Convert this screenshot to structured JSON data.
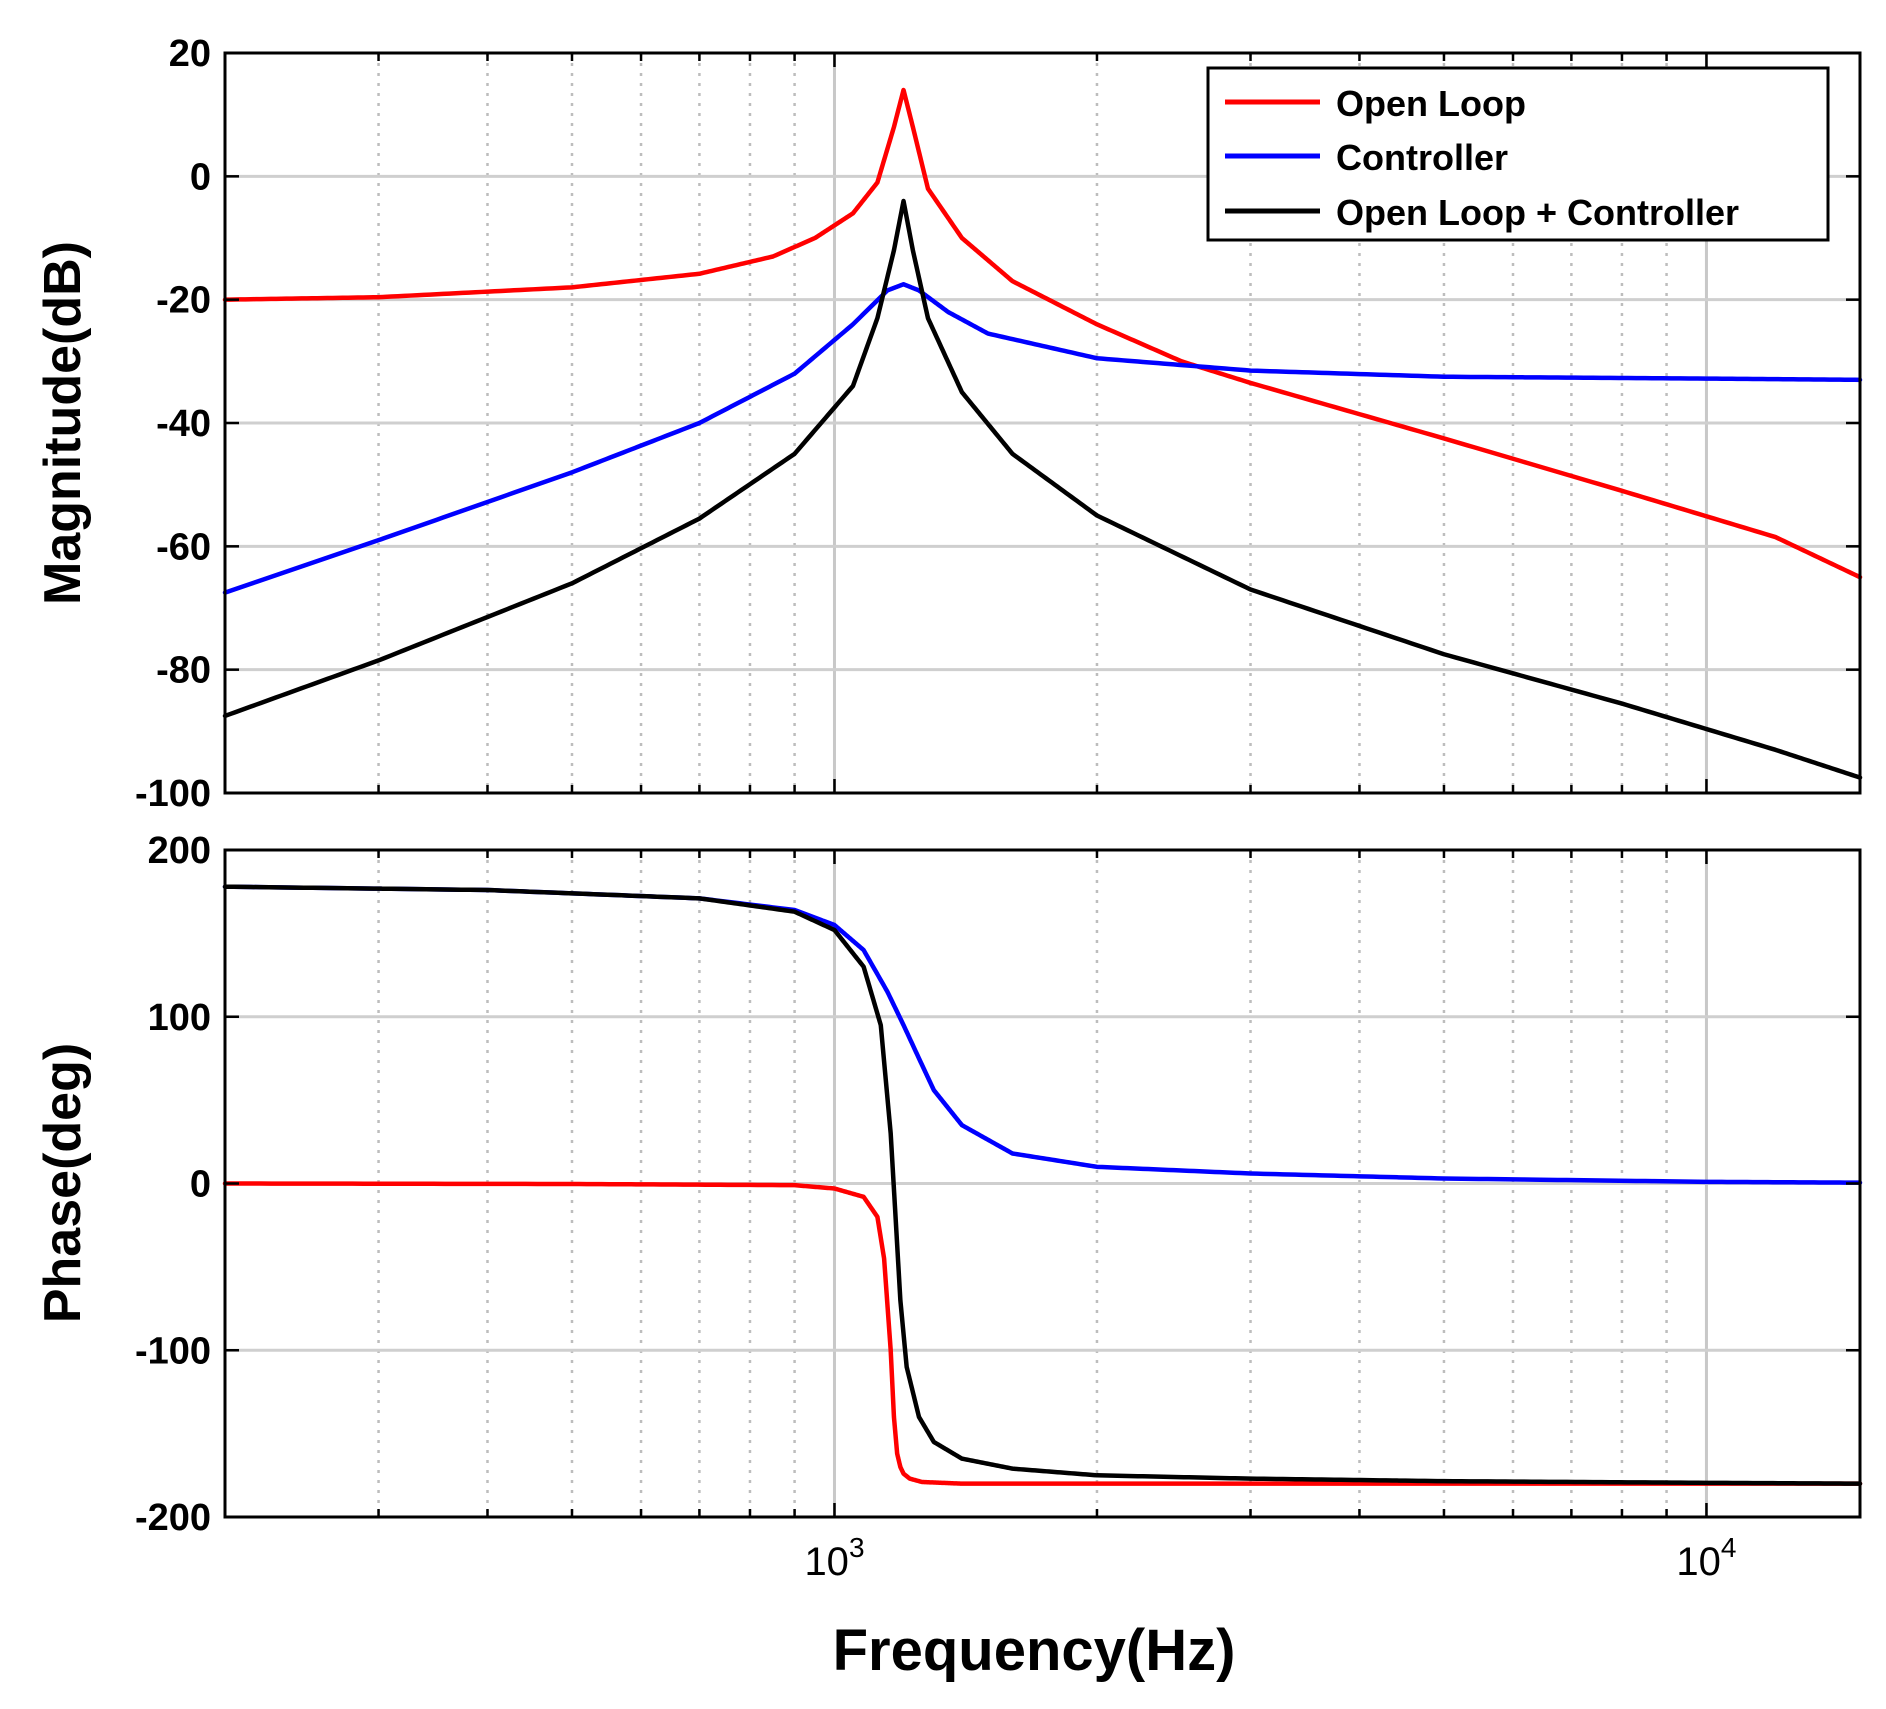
{
  "chart_data": [
    {
      "type": "line",
      "id": "magnitude",
      "title": "",
      "xlabel": "",
      "ylabel": "Magnitude(dB)",
      "xscale": "log",
      "xlim": [
        200,
        15000
      ],
      "ylim": [
        -100,
        20
      ],
      "yticks": [
        20,
        0,
        -20,
        -40,
        -60,
        -80,
        -100
      ],
      "yticklabels": [
        "20",
        "0",
        "-20",
        "-40",
        "-60",
        "-80",
        "-100"
      ],
      "grid": true,
      "legend_position": "top-right",
      "series": [
        {
          "name": "Open Loop",
          "color": "#ff0000",
          "x": [
            200,
            300,
            500,
            700,
            850,
            950,
            1050,
            1120,
            1170,
            1200,
            1230,
            1280,
            1400,
            1600,
            2000,
            2500,
            3000,
            5000,
            8000,
            12000,
            15000
          ],
          "y": [
            -20,
            -19.6,
            -18,
            -15.8,
            -13,
            -10,
            -6,
            -1,
            8,
            14,
            8,
            -2,
            -10,
            -17,
            -24,
            -30,
            -33.5,
            -42.5,
            -51,
            -58.5,
            -65
          ]
        },
        {
          "name": "Controller",
          "color": "#0000ff",
          "x": [
            200,
            300,
            500,
            700,
            900,
            1050,
            1150,
            1200,
            1250,
            1350,
            1500,
            2000,
            3000,
            5000,
            10000,
            15000
          ],
          "y": [
            -67.5,
            -59,
            -48,
            -40,
            -32,
            -24,
            -18.5,
            -17.5,
            -18.5,
            -22,
            -25.5,
            -29.5,
            -31.5,
            -32.5,
            -32.8,
            -33
          ]
        },
        {
          "name": "Open Loop + Controller",
          "color": "#000000",
          "x": [
            200,
            300,
            500,
            700,
            900,
            1050,
            1120,
            1170,
            1200,
            1230,
            1280,
            1400,
            1600,
            2000,
            3000,
            5000,
            8000,
            12000,
            15000
          ],
          "y": [
            -87.5,
            -78.5,
            -66,
            -55.5,
            -45,
            -34,
            -23,
            -12,
            -4,
            -12,
            -23,
            -35,
            -45,
            -55,
            -67,
            -77.5,
            -85.5,
            -93,
            -97.5
          ]
        }
      ]
    },
    {
      "type": "line",
      "id": "phase",
      "title": "",
      "xlabel": "Frequency(Hz)",
      "ylabel": "Phase(deg)",
      "xscale": "log",
      "xlim": [
        200,
        15000
      ],
      "ylim": [
        -200,
        200
      ],
      "yticks": [
        200,
        100,
        0,
        -100,
        -200
      ],
      "yticklabels": [
        "200",
        "100",
        "0",
        "-100",
        "-200"
      ],
      "xticks": [
        1000,
        10000
      ],
      "xtick_bases": [
        "10",
        "10"
      ],
      "xtick_exps": [
        "3",
        "4"
      ],
      "grid": true,
      "series": [
        {
          "name": "Open Loop",
          "color": "#ff0000",
          "x": [
            200,
            500,
            900,
            1000,
            1080,
            1120,
            1140,
            1160,
            1170,
            1180,
            1190,
            1200,
            1220,
            1260,
            1400,
            2000,
            5000,
            15000
          ],
          "y": [
            0,
            -0.3,
            -1,
            -3,
            -8,
            -20,
            -45,
            -100,
            -140,
            -162,
            -170,
            -174,
            -177,
            -179,
            -180,
            -180,
            -180,
            -180
          ]
        },
        {
          "name": "Controller",
          "color": "#0000ff",
          "x": [
            200,
            400,
            700,
            900,
            1000,
            1080,
            1150,
            1200,
            1250,
            1300,
            1400,
            1600,
            2000,
            3000,
            5000,
            10000,
            15000
          ],
          "y": [
            178,
            176,
            171,
            164,
            155,
            140,
            115,
            95,
            75,
            56,
            35,
            18,
            10,
            6,
            3,
            1,
            0.5
          ]
        },
        {
          "name": "Open Loop + Controller",
          "color": "#000000",
          "x": [
            200,
            400,
            700,
            900,
            1000,
            1080,
            1130,
            1160,
            1175,
            1190,
            1210,
            1250,
            1300,
            1400,
            1600,
            2000,
            3000,
            5000,
            10000,
            15000
          ],
          "y": [
            178,
            176,
            171,
            163,
            152,
            130,
            95,
            30,
            -20,
            -70,
            -110,
            -140,
            -155,
            -165,
            -171,
            -175,
            -177,
            -178.5,
            -179.5,
            -180
          ]
        }
      ]
    }
  ]
}
